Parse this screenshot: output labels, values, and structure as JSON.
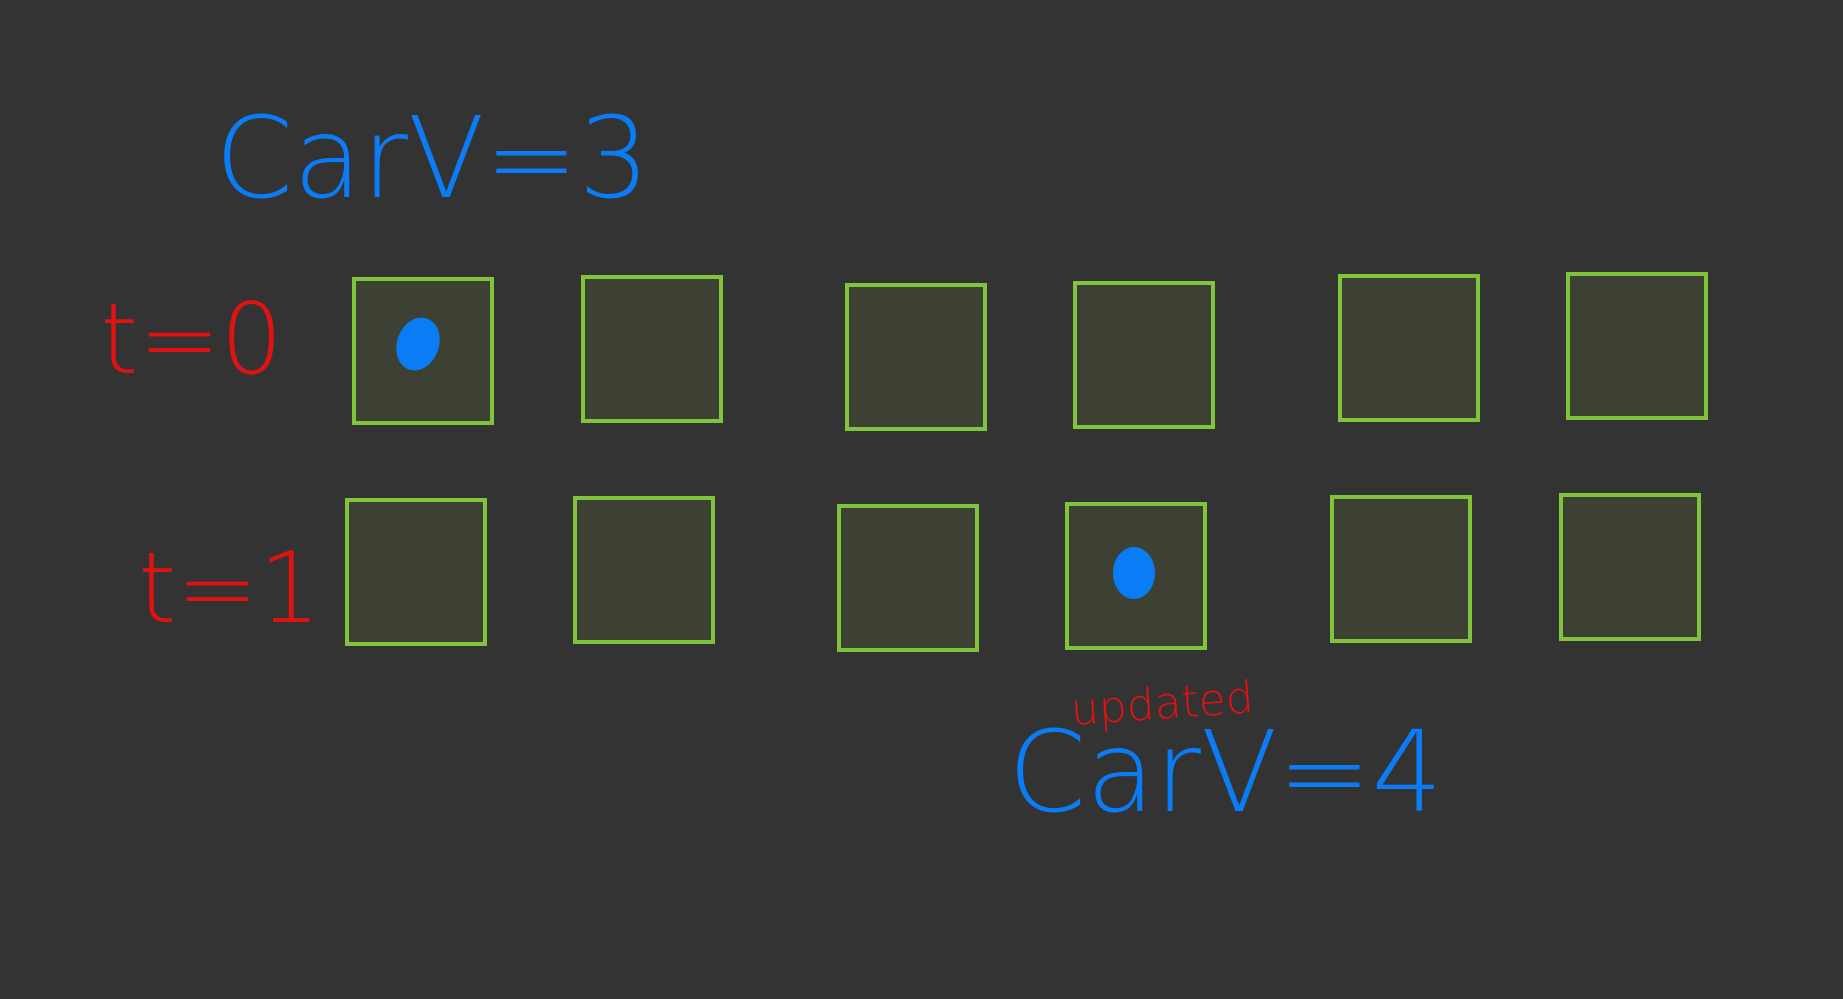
{
  "colors": {
    "background": "#333333",
    "cell_fill": "#3c4133",
    "cell_stroke": "#7fc43a",
    "blue_ink": "#0a7cf5",
    "red_ink": "#e01212"
  },
  "top_annotation": {
    "text": "CarV=3"
  },
  "bottom_annotation": {
    "text": "CarV=4",
    "superscript": "updated"
  },
  "rows": [
    {
      "label": "t=0",
      "cell_count": 6,
      "car_cell_index": 0
    },
    {
      "label": "t=1",
      "cell_count": 6,
      "car_cell_index": 3
    }
  ]
}
